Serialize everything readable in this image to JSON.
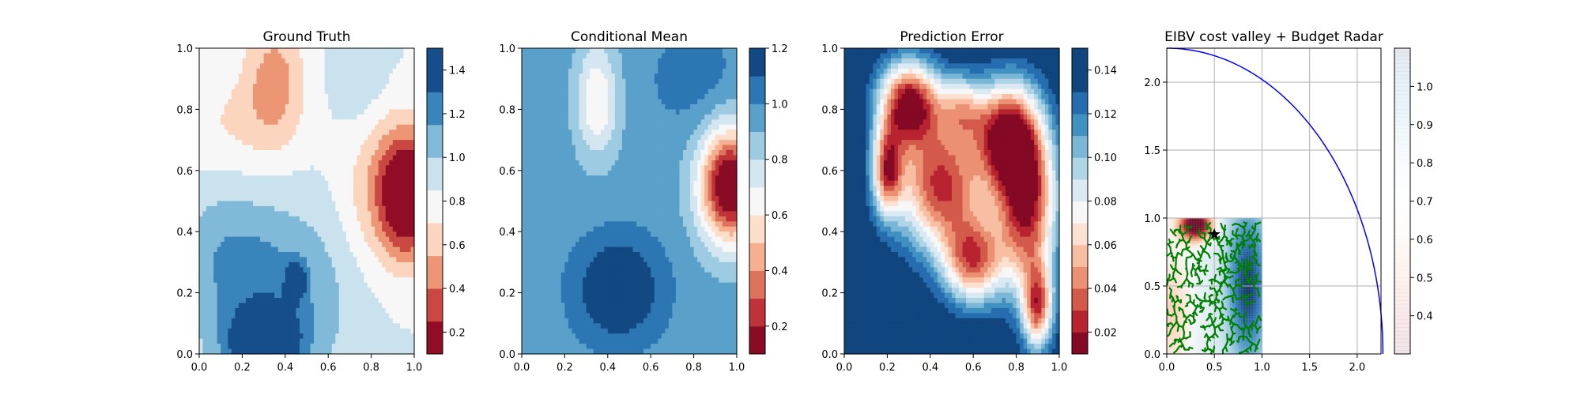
{
  "chart_data": [
    {
      "type": "heatmap",
      "title": "Ground Truth",
      "xlabel": "",
      "ylabel": "",
      "xlim": [
        0,
        1
      ],
      "ylim": [
        0,
        1
      ],
      "xticks": [
        "0.0",
        "0.2",
        "0.4",
        "0.6",
        "0.8",
        "1.0"
      ],
      "yticks": [
        "0.0",
        "0.2",
        "0.4",
        "0.6",
        "0.8",
        "1.0"
      ],
      "colormap": "RdBu",
      "colorbar": {
        "levels": [
          0.1,
          0.25,
          0.4,
          0.55,
          0.7,
          0.85,
          1.0,
          1.15,
          1.3,
          1.5
        ],
        "ticks": [
          {
            "value": 0.2,
            "label": "0.2"
          },
          {
            "value": 0.4,
            "label": "0.4"
          },
          {
            "value": 0.6,
            "label": "0.6"
          },
          {
            "value": 0.8,
            "label": "0.8"
          },
          {
            "value": 1.0,
            "label": "1.0"
          },
          {
            "value": 1.2,
            "label": "1.2"
          },
          {
            "value": 1.4,
            "label": "1.4"
          }
        ]
      },
      "field": {
        "base": 0.85,
        "bumps": [
          {
            "x": 0.97,
            "y": 0.52,
            "sx": 0.09,
            "sy": 0.14,
            "a": -0.9
          },
          {
            "x": 0.82,
            "y": 0.55,
            "sx": 0.12,
            "sy": 0.2,
            "a": -0.25
          },
          {
            "x": 0.35,
            "y": 0.9,
            "sx": 0.1,
            "sy": 0.15,
            "a": -0.35
          },
          {
            "x": 0.15,
            "y": 0.75,
            "sx": 0.2,
            "sy": 0.12,
            "a": -0.15
          },
          {
            "x": 0.3,
            "y": 0.03,
            "sx": 0.12,
            "sy": 0.08,
            "a": 0.65
          },
          {
            "x": 0.45,
            "y": 0.24,
            "sx": 0.03,
            "sy": 0.04,
            "a": 0.5
          },
          {
            "x": 0.35,
            "y": 0.2,
            "sx": 0.25,
            "sy": 0.2,
            "a": 0.35
          },
          {
            "x": 0.1,
            "y": 0.35,
            "sx": 0.15,
            "sy": 0.15,
            "a": 0.15
          },
          {
            "x": 0.75,
            "y": 0.9,
            "sx": 0.1,
            "sy": 0.15,
            "a": 0.15
          }
        ]
      }
    },
    {
      "type": "heatmap",
      "title": "Conditional Mean",
      "xlabel": "",
      "ylabel": "",
      "xlim": [
        0,
        1
      ],
      "ylim": [
        0,
        1
      ],
      "xticks": [
        "0.0",
        "0.2",
        "0.4",
        "0.6",
        "0.8",
        "1.0"
      ],
      "yticks": [
        "0.0",
        "0.2",
        "0.4",
        "0.6",
        "0.8",
        "1.0"
      ],
      "colormap": "RdBu",
      "colorbar": {
        "levels": [
          0.1,
          0.2,
          0.3,
          0.4,
          0.5,
          0.6,
          0.7,
          0.8,
          0.9,
          1.0,
          1.1,
          1.2
        ],
        "ticks": [
          {
            "value": 0.2,
            "label": "0.2"
          },
          {
            "value": 0.4,
            "label": "0.4"
          },
          {
            "value": 0.6,
            "label": "0.6"
          },
          {
            "value": 0.8,
            "label": "0.8"
          },
          {
            "value": 1.0,
            "label": "1.0"
          },
          {
            "value": 1.2,
            "label": "1.2"
          }
        ]
      },
      "field": {
        "base": 0.95,
        "bumps": [
          {
            "x": 0.97,
            "y": 0.55,
            "sx": 0.1,
            "sy": 0.13,
            "a": -0.95
          },
          {
            "x": 0.35,
            "y": 0.83,
            "sx": 0.07,
            "sy": 0.13,
            "a": -0.35
          },
          {
            "x": 0.45,
            "y": 0.21,
            "sx": 0.14,
            "sy": 0.12,
            "a": 0.3
          },
          {
            "x": 0.8,
            "y": 0.9,
            "sx": 0.15,
            "sy": 0.12,
            "a": 0.1
          },
          {
            "x": 0.05,
            "y": 0.8,
            "sx": 0.08,
            "sy": 0.2,
            "a": 0.05
          }
        ]
      }
    },
    {
      "type": "heatmap",
      "title": "Prediction Error",
      "xlabel": "",
      "ylabel": "",
      "xlim": [
        0,
        1
      ],
      "ylim": [
        0,
        1
      ],
      "xticks": [
        "0.0",
        "0.2",
        "0.4",
        "0.6",
        "0.8",
        "1.0"
      ],
      "yticks": [
        "0.0",
        "0.2",
        "0.4",
        "0.6",
        "0.8",
        "1.0"
      ],
      "colormap": "RdBu",
      "colorbar": {
        "levels": [
          0.01,
          0.02,
          0.03,
          0.04,
          0.05,
          0.06,
          0.07,
          0.08,
          0.09,
          0.1,
          0.11,
          0.12,
          0.13,
          0.15
        ],
        "ticks": [
          {
            "value": 0.02,
            "label": "0.02"
          },
          {
            "value": 0.04,
            "label": "0.04"
          },
          {
            "value": 0.06,
            "label": "0.06"
          },
          {
            "value": 0.08,
            "label": "0.08"
          },
          {
            "value": 0.1,
            "label": "0.10"
          },
          {
            "value": 0.12,
            "label": "0.12"
          },
          {
            "value": 0.14,
            "label": "0.14"
          }
        ]
      },
      "field": {
        "base": 0.148,
        "bumps": [
          {
            "x": 0.3,
            "y": 0.82,
            "sx": 0.1,
            "sy": 0.1,
            "a": -0.13
          },
          {
            "x": 0.45,
            "y": 0.55,
            "sx": 0.15,
            "sy": 0.15,
            "a": -0.12
          },
          {
            "x": 0.85,
            "y": 0.5,
            "sx": 0.1,
            "sy": 0.2,
            "a": -0.13
          },
          {
            "x": 0.6,
            "y": 0.3,
            "sx": 0.1,
            "sy": 0.1,
            "a": -0.1
          },
          {
            "x": 0.75,
            "y": 0.72,
            "sx": 0.1,
            "sy": 0.12,
            "a": -0.11
          },
          {
            "x": 0.2,
            "y": 0.6,
            "sx": 0.05,
            "sy": 0.1,
            "a": -0.1
          },
          {
            "x": 0.9,
            "y": 0.15,
            "sx": 0.05,
            "sy": 0.1,
            "a": -0.1
          },
          {
            "x": 0.55,
            "y": 0.8,
            "sx": 0.08,
            "sy": 0.08,
            "a": -0.06
          }
        ]
      }
    },
    {
      "type": "heatmap",
      "title": "EIBV cost valley + Budget Radar",
      "xlabel": "",
      "ylabel": "",
      "xlim": [
        0,
        2.25
      ],
      "ylim": [
        0,
        2.25
      ],
      "xticks": [
        "0.0",
        "0.5",
        "1.0",
        "1.5",
        "2.0"
      ],
      "yticks": [
        "0.0",
        "0.5",
        "1.0",
        "1.5",
        "2.0"
      ],
      "grid": true,
      "colormap": "RdBu",
      "field_extent": [
        0,
        1,
        0,
        1
      ],
      "colorbar": {
        "range": [
          0.3,
          1.1
        ],
        "alpha": 0.1,
        "ticks": [
          {
            "value": 0.4,
            "label": "0.4"
          },
          {
            "value": 0.5,
            "label": "0.5"
          },
          {
            "value": 0.6,
            "label": "0.6"
          },
          {
            "value": 0.7,
            "label": "0.7"
          },
          {
            "value": 0.8,
            "label": "0.8"
          },
          {
            "value": 0.9,
            "label": "0.9"
          },
          {
            "value": 1.0,
            "label": "1.0"
          }
        ]
      },
      "field": {
        "base": 0.75,
        "bumps": [
          {
            "x": 0.3,
            "y": 0.95,
            "sx": 0.12,
            "sy": 0.08,
            "a": -0.55
          },
          {
            "x": 0.85,
            "y": 0.5,
            "sx": 0.15,
            "sy": 0.4,
            "a": 0.35
          },
          {
            "x": 0.05,
            "y": 0.3,
            "sx": 0.15,
            "sy": 0.35,
            "a": -0.15
          }
        ]
      },
      "budget_ellipse": {
        "center": [
          0,
          0
        ],
        "a": 2.27,
        "b": 2.25,
        "color": "#0000ff"
      },
      "current_location": {
        "x": 0.5,
        "y": 0.88,
        "marker": "star"
      },
      "tree_color": "#008000",
      "tree_seed": 7
    }
  ]
}
